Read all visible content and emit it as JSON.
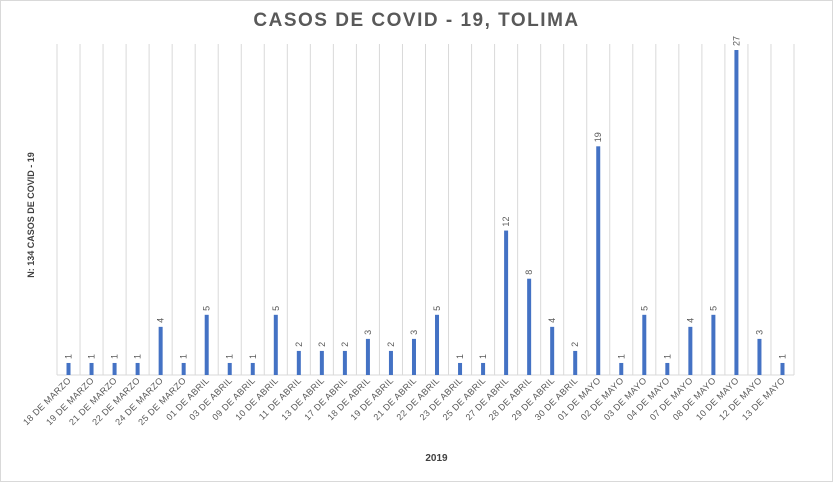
{
  "chart_data": {
    "type": "bar",
    "title": "CASOS DE COVID - 19, TOLIMA",
    "xlabel": "2019",
    "ylabel": "N: 134 CASOS DE COVID - 19",
    "categories": [
      "18 DE MARZO",
      "19 DE MARZO",
      "21 DE MARZO",
      "22 DE MARZO",
      "24 DE MARZO",
      "25 DE MARZO",
      "01 DE ABRIL",
      "03 DE ABRIL",
      "09 DE ABRIL",
      "10 DE ABRIL",
      "11 DE ABRIL",
      "13 DE ABRIL",
      "17 DE ABRIL",
      "18 DE ABRIL",
      "19 DE ABRIL",
      "21 DE ABRIL",
      "22 DE ABRIL",
      "23 DE ABRIL",
      "25 DE ABRIL",
      "27 DE ABRIL",
      "28 DE ABRIL",
      "29 DE ABRIL",
      "30 DE ABRIL",
      "01 DE MAYO",
      "02 DE MAYO",
      "03 DE MAYO",
      "04 DE MAYO",
      "07 DE MAYO",
      "08 DE MAYO",
      "10 DE MAYO",
      "12 DE MAYO",
      "13 DE MAYO"
    ],
    "values": [
      1,
      1,
      1,
      1,
      4,
      1,
      5,
      1,
      1,
      5,
      2,
      2,
      2,
      3,
      2,
      3,
      5,
      1,
      1,
      12,
      8,
      4,
      2,
      19,
      1,
      5,
      1,
      4,
      5,
      27,
      3,
      1
    ],
    "data_labels": true,
    "grid": "vertical",
    "legend": "none",
    "ylim": [
      0,
      27.5
    ],
    "colors": {
      "bar": "#4472c4",
      "grid": "#d9d9d9",
      "text": "#595959"
    }
  }
}
